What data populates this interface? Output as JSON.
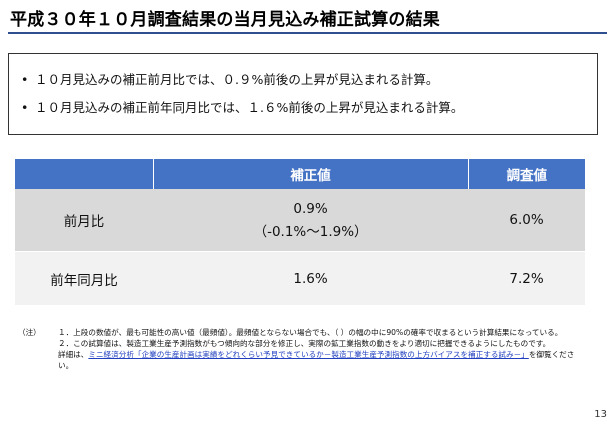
{
  "title": "平成３０年１０月調査結果の当月見込み補正試算の結果",
  "summary": {
    "bullet": "•",
    "line1": "１０月見込みの補正前月比では、０.９%前後の上昇が見込まれる計算。",
    "line2": "１０月見込みの補正前年同月比では、１.６%前後の上昇が見込まれる計算。"
  },
  "table": {
    "headers": [
      "",
      "補正値",
      "調査値"
    ],
    "rows": [
      {
        "label": "前月比",
        "corrected": "0.9%",
        "corrected_range": "（-0.1%～1.9%）",
        "survey": "6.0%"
      },
      {
        "label": "前年同月比",
        "corrected": "1.6%",
        "survey": "7.2%"
      }
    ]
  },
  "notes": {
    "label": "（注）",
    "n1": "１．上段の数値が、最も可能性の高い値（最頻値）。最頻値とならない場合でも、（ ）の幅の中に90%の確率で収まるという計算結果になっている。",
    "n2": "２．この試算値は、製造工業生産予測指数がもつ傾向的な部分を修正し、実際の鉱工業指数の動きをより適切に把握できるようにしたものです。",
    "n3_pre": "詳細は、",
    "n3_link": "ミニ経済分析「企業の生産計画は実績をどれくらい予見できているか－製造工業生産予測指数の上方バイアスを補正する試み－」",
    "n3_post": "を御覧ください。"
  },
  "page_number": "13"
}
